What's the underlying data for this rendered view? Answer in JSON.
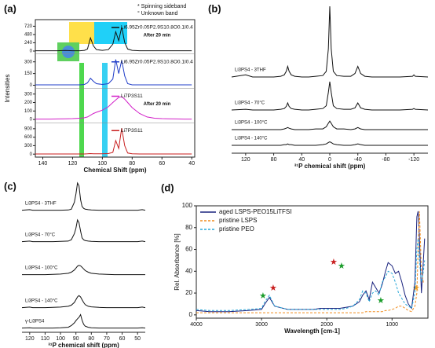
{
  "chart_data": [
    {
      "type": "spectra",
      "panel_label": "(a)",
      "xlabel": "Chemical Shift (ppm)",
      "ylabel": "Intensities",
      "annotations": [
        "* Spinning sideband",
        "° Unknown band"
      ],
      "xlim": [
        145,
        38
      ],
      "xticks": [
        140,
        120,
        100,
        80,
        60,
        40
      ],
      "x": [
        145,
        140,
        135,
        130,
        125,
        120,
        115,
        112,
        110,
        108,
        106,
        104,
        100,
        96,
        93,
        91,
        89,
        87,
        85,
        83,
        80,
        75,
        70,
        65,
        60,
        55,
        50,
        45,
        40
      ],
      "series": [
        {
          "name": "Li6.95Zr0.05P2.9S10.8O0.1I0.4",
          "annotation": "After 20 min",
          "color": "#111111",
          "ylim": [
            -40,
            820
          ],
          "yticks": [
            0,
            240,
            480,
            720
          ],
          "values": [
            10,
            10,
            10,
            10,
            15,
            10,
            10,
            20,
            60,
            380,
            150,
            40,
            20,
            40,
            200,
            560,
            300,
            700,
            250,
            60,
            20,
            10,
            10,
            10,
            10,
            10,
            10,
            10,
            10
          ]
        },
        {
          "name": "Li6.95Zr0.05P2.9S10.8O0.1I0.4",
          "color": "#1f3cc8",
          "ylim": [
            -20,
            360
          ],
          "yticks": [
            0,
            150,
            300
          ],
          "values": [
            5,
            5,
            5,
            5,
            5,
            5,
            5,
            10,
            30,
            90,
            50,
            20,
            10,
            20,
            80,
            330,
            150,
            320,
            120,
            20,
            5,
            5,
            5,
            5,
            5,
            5,
            5,
            5,
            5
          ]
        },
        {
          "name": "Li7P3S11",
          "annotation": "After 20 min",
          "color": "#d21fc8",
          "ylim": [
            -20,
            330
          ],
          "yticks": [
            0,
            100,
            200,
            300
          ],
          "values": [
            5,
            5,
            5,
            6,
            8,
            10,
            15,
            20,
            30,
            50,
            70,
            85,
            110,
            150,
            200,
            230,
            260,
            270,
            240,
            200,
            140,
            70,
            30,
            15,
            10,
            8,
            6,
            5,
            5
          ]
        },
        {
          "name": "Li7P3S11",
          "color": "#c81e1e",
          "ylim": [
            -50,
            1000
          ],
          "yticks": [
            0,
            300,
            600,
            900
          ],
          "values": [
            5,
            5,
            5,
            5,
            5,
            5,
            5,
            5,
            10,
            20,
            15,
            10,
            10,
            20,
            60,
            480,
            200,
            920,
            300,
            40,
            10,
            5,
            5,
            5,
            5,
            5,
            5,
            5,
            5
          ]
        }
      ]
    },
    {
      "type": "spectra",
      "panel_label": "(b)",
      "xlabel": "³¹P chemical shift (ppm)",
      "xlim": [
        140,
        -140
      ],
      "xticks": [
        120,
        80,
        40,
        0,
        -40,
        -80,
        -120
      ],
      "ylim": [
        0,
        100
      ],
      "x": [
        140,
        120,
        110,
        100,
        90,
        80,
        70,
        65,
        62,
        60,
        58,
        55,
        50,
        40,
        30,
        20,
        10,
        5,
        2,
        0,
        -2,
        -5,
        -10,
        -20,
        -30,
        -36,
        -40,
        -44,
        -50,
        -60,
        -80,
        -100,
        -118,
        -120,
        -122,
        -140
      ],
      "series": [
        {
          "name": "Li3PS4 - 3THF",
          "color": "#111111",
          "values": [
            0,
            3,
            0,
            0,
            0,
            0,
            1,
            3,
            8,
            15,
            8,
            3,
            1,
            0,
            0,
            1,
            2,
            8,
            40,
            100,
            40,
            8,
            2,
            1,
            1,
            5,
            15,
            5,
            1,
            0,
            0,
            0,
            1,
            3,
            1,
            0
          ]
        },
        {
          "name": "Li3PS4 - 70°C",
          "color": "#111111",
          "values": [
            0,
            1,
            0,
            0,
            0,
            0,
            1,
            2,
            5,
            10,
            5,
            2,
            1,
            0,
            0,
            1,
            2,
            6,
            25,
            40,
            25,
            6,
            2,
            1,
            1,
            3,
            10,
            3,
            1,
            0,
            0,
            0,
            1,
            2,
            1,
            0
          ]
        },
        {
          "name": "Li3PS4 - 100°C",
          "color": "#111111",
          "values": [
            0,
            0,
            0,
            0,
            0,
            0,
            0,
            1,
            2,
            3,
            2,
            1,
            0,
            0,
            0,
            1,
            1,
            4,
            9,
            12,
            9,
            4,
            1,
            1,
            0,
            1,
            3,
            1,
            0,
            0,
            0,
            0,
            0,
            0,
            0,
            0
          ]
        },
        {
          "name": "Li3PS4 - 140°C",
          "color": "#111111",
          "values": [
            0,
            0,
            0,
            0,
            0,
            0,
            0,
            1,
            1,
            2,
            1,
            1,
            0,
            0,
            0,
            0,
            1,
            2,
            4,
            5,
            4,
            2,
            1,
            0,
            0,
            1,
            2,
            1,
            0,
            0,
            0,
            0,
            0,
            0,
            0,
            0
          ]
        }
      ]
    },
    {
      "type": "spectra",
      "panel_label": "(c)",
      "xlabel": "³¹P chemical shift (ppm)",
      "xlim": [
        125,
        45
      ],
      "xticks": [
        120,
        110,
        100,
        90,
        80,
        70,
        60,
        50
      ],
      "ylim": [
        0,
        100
      ],
      "x": [
        125,
        120,
        118,
        115,
        110,
        105,
        100,
        95,
        93,
        91,
        90,
        89,
        88,
        87,
        86,
        85,
        84,
        82,
        80,
        75,
        70,
        65,
        60,
        58,
        55,
        50,
        47,
        45
      ],
      "series": [
        {
          "name": "Li3PS4 - 3THF",
          "color": "#111111",
          "values": [
            1,
            3,
            1,
            1,
            1,
            1,
            1,
            2,
            5,
            30,
            60,
            100,
            90,
            40,
            15,
            8,
            5,
            3,
            2,
            1,
            1,
            1,
            1,
            1,
            1,
            1,
            3,
            1
          ]
        },
        {
          "name": "Li3PS4 - 70°C",
          "color": "#111111",
          "values": [
            1,
            3,
            1,
            1,
            1,
            1,
            2,
            3,
            8,
            30,
            50,
            80,
            70,
            40,
            15,
            8,
            5,
            3,
            2,
            1,
            1,
            1,
            1,
            1,
            1,
            1,
            3,
            1
          ]
        },
        {
          "name": "Li3PS4 - 100°C",
          "color": "#111111",
          "values": [
            1,
            1,
            1,
            1,
            1,
            2,
            3,
            6,
            10,
            18,
            25,
            32,
            35,
            33,
            28,
            22,
            16,
            10,
            6,
            3,
            2,
            1,
            1,
            1,
            1,
            1,
            1,
            1
          ]
        },
        {
          "name": "Li3PS4 - 140°C",
          "color": "#111111",
          "values": [
            1,
            3,
            1,
            1,
            1,
            2,
            3,
            6,
            10,
            20,
            30,
            40,
            45,
            40,
            30,
            20,
            12,
            6,
            4,
            2,
            1,
            1,
            1,
            1,
            1,
            1,
            3,
            1
          ]
        },
        {
          "name": "γ-Li3PS4",
          "color": "#111111",
          "values": [
            1,
            2,
            1,
            1,
            1,
            1,
            2,
            4,
            10,
            20,
            28,
            35,
            40,
            50,
            30,
            15,
            8,
            4,
            2,
            1,
            1,
            1,
            1,
            1,
            1,
            1,
            2,
            1
          ]
        }
      ]
    },
    {
      "type": "line",
      "panel_label": "(d)",
      "xlabel": "Wavelength [cm-1]",
      "ylabel": "Rel. Absorbance [%]",
      "xlim": [
        4000,
        450
      ],
      "xticks": [
        4000,
        3000,
        2000,
        1000
      ],
      "ylim": [
        -3,
        100
      ],
      "yticks": [
        0,
        20,
        40,
        60,
        80,
        100
      ],
      "x": [
        4000,
        3800,
        3500,
        3200,
        3000,
        2950,
        2880,
        2800,
        2600,
        2400,
        2200,
        2100,
        2000,
        1800,
        1700,
        1600,
        1500,
        1450,
        1400,
        1350,
        1300,
        1250,
        1200,
        1150,
        1100,
        1060,
        1000,
        950,
        900,
        850,
        800,
        750,
        700,
        650,
        620,
        600,
        580,
        550,
        520,
        500
      ],
      "series": [
        {
          "name": "aged LSPS-PEO15LiTFSI",
          "color": "#1a237e",
          "dashed": false,
          "values": [
            4,
            3,
            3,
            4,
            5,
            10,
            16,
            8,
            5,
            5,
            5,
            6,
            6,
            6,
            7,
            8,
            12,
            18,
            22,
            14,
            30,
            25,
            20,
            28,
            40,
            48,
            45,
            38,
            40,
            30,
            18,
            10,
            6,
            30,
            90,
            95,
            70,
            20,
            50,
            70
          ]
        },
        {
          "name": "pristine LSPS",
          "color": "#f08c1e",
          "dashed": true,
          "values": [
            2,
            2,
            2,
            2,
            2,
            2,
            2,
            2,
            2,
            2,
            2,
            2,
            2,
            2,
            2,
            2,
            2,
            2,
            3,
            3,
            3,
            3,
            3,
            3,
            4,
            4,
            5,
            6,
            8,
            8,
            6,
            4,
            3,
            8,
            20,
            60,
            95,
            40,
            30,
            30
          ]
        },
        {
          "name": "pristine PEO",
          "color": "#29a8d8",
          "dashed": true,
          "values": [
            5,
            4,
            4,
            5,
            6,
            12,
            18,
            8,
            5,
            5,
            5,
            5,
            5,
            5,
            6,
            8,
            14,
            22,
            20,
            12,
            20,
            22,
            18,
            30,
            35,
            40,
            38,
            30,
            20,
            15,
            10,
            8,
            6,
            20,
            60,
            70,
            50,
            30,
            40,
            50
          ]
        }
      ]
    }
  ]
}
